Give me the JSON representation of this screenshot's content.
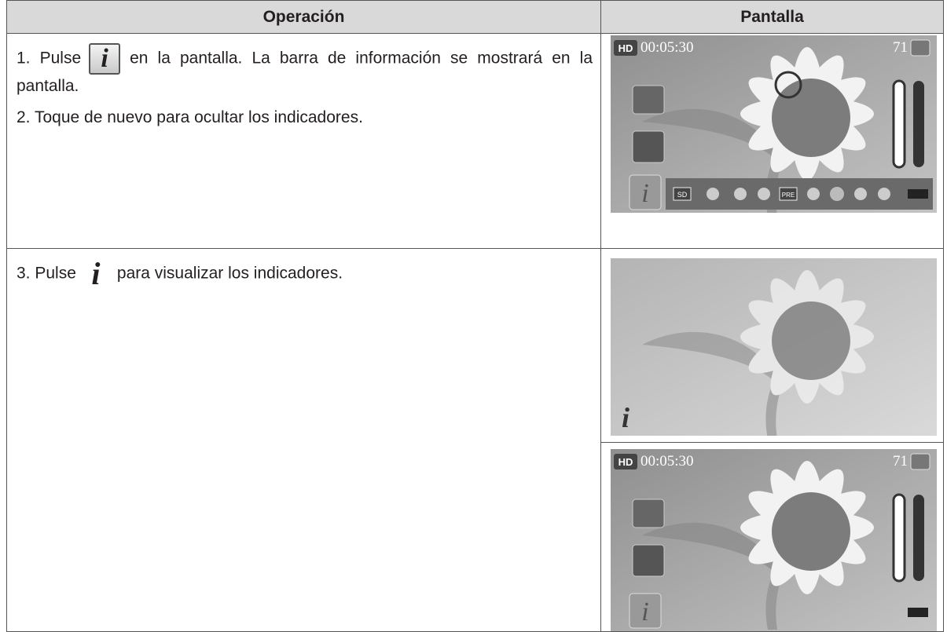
{
  "header": {
    "operacion": "Operación",
    "pantalla": "Pantalla"
  },
  "rows": [
    {
      "steps": [
        {
          "before": "1. Pulse",
          "after": "en la pantalla. La barra de información se mostrará en la pantalla."
        },
        {
          "text": "2. Toque de nuevo para ocultar los indicadores."
        }
      ]
    },
    {
      "steps": [
        {
          "before": "3. Pulse",
          "after": "para visualizar los indicadores."
        }
      ]
    }
  ],
  "screens": [
    {
      "badge": "HD",
      "time": "00:05:30",
      "count": "71",
      "card": "SD",
      "pre": "PRE"
    },
    {
      "badge": "HD",
      "time": "00:05:30",
      "count": "71"
    }
  ]
}
